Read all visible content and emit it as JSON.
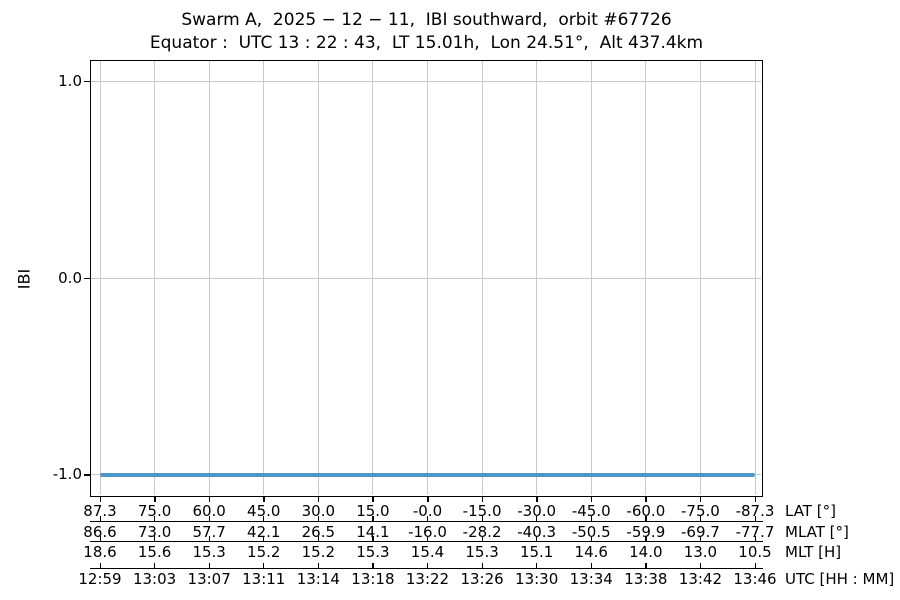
{
  "chart_data": {
    "type": "line",
    "title": "Swarm A,  2025 − 12 − 11,  IBI southward,  orbit #67726",
    "subtitle": "Equator :  UTC 13 : 22 : 43,  LT 15.01h,  Lon 24.51°,  Alt 437.4km",
    "ylabel": "IBI",
    "ylim": [
      -1.11,
      1.11
    ],
    "yticks": [
      1.0,
      0.0,
      -1.0
    ],
    "ytick_labels": [
      "1.0",
      "0.0",
      "-1.0"
    ],
    "grid": true,
    "legend": "none",
    "series": [
      {
        "name": "IBI",
        "constant_value": -1.0,
        "color": "#4c96c8"
      }
    ],
    "x_axis_rows": [
      {
        "label": "LAT [°]",
        "values": [
          "87.3",
          "75.0",
          "60.0",
          "45.0",
          "30.0",
          "15.0",
          "-0.0",
          "-15.0",
          "-30.0",
          "-45.0",
          "-60.0",
          "-75.0",
          "-87.3"
        ]
      },
      {
        "label": "MLAT [°]",
        "values": [
          "86.6",
          "73.0",
          "57.7",
          "42.1",
          "26.5",
          "14.1",
          "-16.0",
          "-28.2",
          "-40.3",
          "-50.5",
          "-59.9",
          "-69.7",
          "-77.7"
        ]
      },
      {
        "label": "MLT [H]",
        "values": [
          "18.6",
          "15.6",
          "15.3",
          "15.2",
          "15.2",
          "15.3",
          "15.4",
          "15.3",
          "15.1",
          "14.6",
          "14.0",
          "13.0",
          "10.5"
        ]
      },
      {
        "label": "UTC [HH : MM]",
        "values": [
          "12:59",
          "13:03",
          "13:07",
          "13:11",
          "13:14",
          "13:18",
          "13:22",
          "13:26",
          "13:30",
          "13:34",
          "13:38",
          "13:42",
          "13:46"
        ]
      }
    ],
    "colors": {
      "line": "#4c96c8",
      "grid": "#c9c9c9",
      "spine": "#000000",
      "background": "#ffffff"
    }
  }
}
